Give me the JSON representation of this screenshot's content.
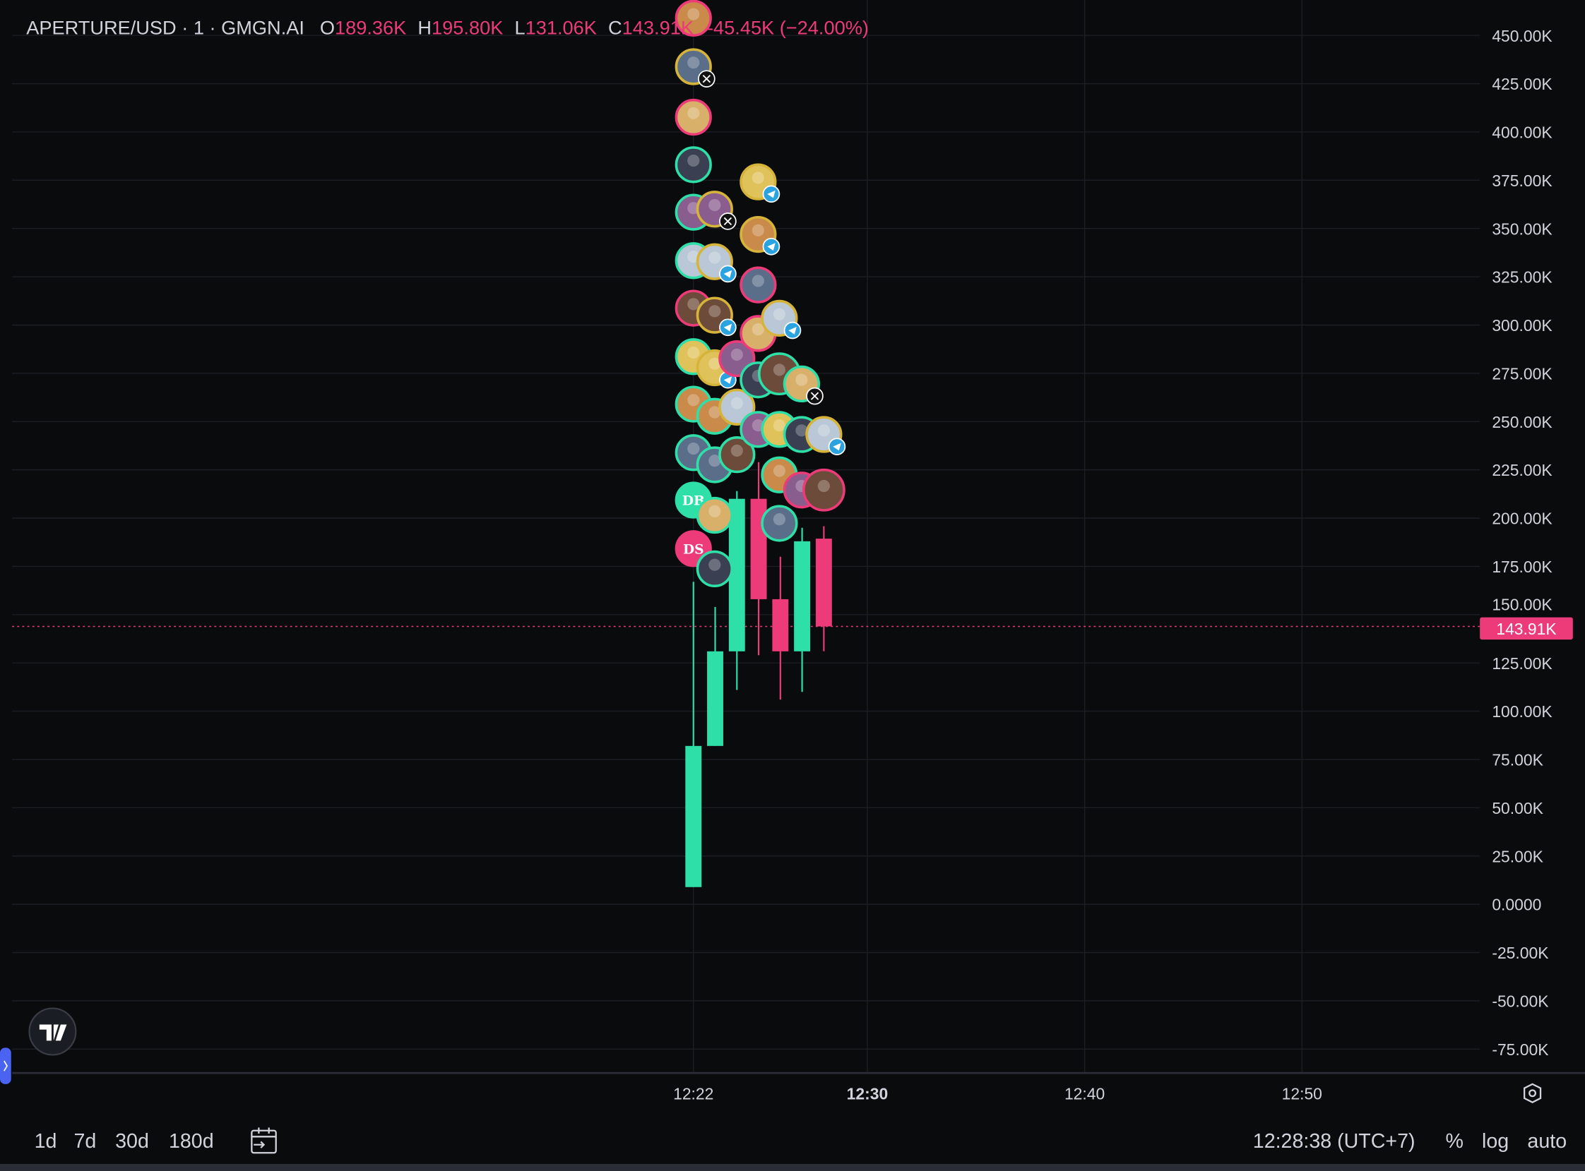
{
  "header": {
    "symbol": "APERTURE/USD · 1 · GMGN.AI",
    "o_label": "O",
    "o_value": "189.36K",
    "h_label": "H",
    "h_value": "195.80K",
    "l_label": "L",
    "l_value": "131.06K",
    "c_label": "C",
    "c_value": "143.91K",
    "change": "-45.45K (−24.00%)"
  },
  "price_axis": {
    "ticks": [
      "450.00K",
      "425.00K",
      "400.00K",
      "375.00K",
      "350.00K",
      "325.00K",
      "300.00K",
      "275.00K",
      "250.00K",
      "225.00K",
      "200.00K",
      "175.00K",
      "150.00K",
      "125.00K",
      "100.00K",
      "75.00K",
      "50.00K",
      "25.00K",
      "0.0000",
      "-25.00K",
      "-50.00K",
      "-75.00K"
    ],
    "last_price_label": "143.91K"
  },
  "time_axis": {
    "ticks": [
      "12:22",
      "12:30",
      "12:40",
      "12:50"
    ]
  },
  "footer": {
    "ranges": [
      "1d",
      "7d",
      "30d",
      "180d"
    ],
    "clock": "12:28:38 (UTC+7)",
    "percent": "%",
    "log": "log",
    "auto": "auto"
  },
  "avatars": {
    "db_label": "DB",
    "ds_label": "DS"
  },
  "colors": {
    "up": "#2ee0a8",
    "down": "#ed3a79",
    "background": "#0a0b0d",
    "grid": "#1c1e24",
    "gold": "#d6b43a"
  },
  "chart_data": {
    "type": "candlestick",
    "x": [
      "12:22",
      "12:23",
      "12:24",
      "12:25",
      "12:26",
      "12:27",
      "12:28"
    ],
    "open": [
      8.9,
      82,
      131,
      210,
      158,
      131,
      189.36
    ],
    "high": [
      167,
      154,
      214,
      229,
      180,
      195,
      195.8
    ],
    "low": [
      8.9,
      82,
      111,
      129,
      106,
      110,
      131.06
    ],
    "close": [
      82,
      131,
      210,
      158,
      131,
      188,
      143.91
    ],
    "unit": "K USD",
    "ylim": [
      -85,
      460
    ],
    "grid": true
  }
}
